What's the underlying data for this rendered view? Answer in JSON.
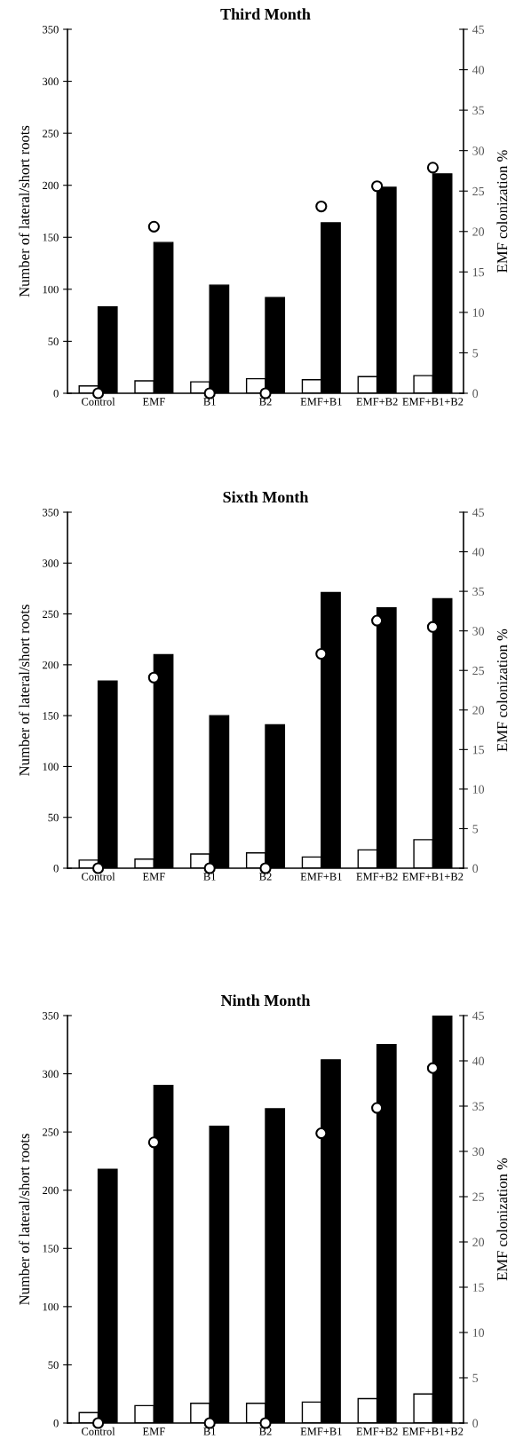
{
  "chart_data": [
    {
      "type": "bar",
      "title": "Third Month",
      "ylabel": "Number of lateral/short roots",
      "y2label": "EMF colonization %",
      "categories": [
        "Control",
        "EMF",
        "B1",
        "B2",
        "EMF+B1",
        "EMF+B2",
        "EMF+B1+B2"
      ],
      "series": [
        {
          "color": "#ffffff",
          "values": [
            7,
            12,
            11,
            14,
            13,
            16,
            17
          ]
        },
        {
          "color": "#000000",
          "values": [
            83,
            145,
            104,
            92,
            164,
            198,
            211
          ]
        },
        {
          "type": "scatter",
          "axis": "y2",
          "color": "#ffffff",
          "values": [
            0,
            20.6,
            0,
            0,
            23.1,
            25.6,
            27.9
          ]
        }
      ],
      "ylim": [
        0,
        350
      ],
      "yticks": [
        0,
        50,
        100,
        150,
        200,
        250,
        300,
        350
      ],
      "y2lim": [
        0,
        45
      ],
      "y2ticks": [
        0,
        5,
        10,
        15,
        20,
        25,
        30,
        35,
        40,
        45
      ],
      "marker": "circle",
      "grid": false,
      "legend": false
    },
    {
      "type": "bar",
      "title": "Sixth Month",
      "ylabel": "Number of lateral/short roots",
      "y2label": "EMF colonization %",
      "categories": [
        "Control",
        "EMF",
        "B1",
        "B2",
        "EMF+B1",
        "EMF+B2",
        "EMF+B1+B2"
      ],
      "series": [
        {
          "color": "#ffffff",
          "values": [
            8,
            9,
            14,
            15,
            11,
            18,
            28
          ]
        },
        {
          "color": "#000000",
          "values": [
            184,
            210,
            150,
            141,
            271,
            256,
            265
          ]
        },
        {
          "type": "scatter",
          "axis": "y2",
          "color": "#ffffff",
          "values": [
            0,
            24.1,
            0,
            0,
            27.1,
            31.3,
            30.5
          ]
        }
      ],
      "ylim": [
        0,
        350
      ],
      "yticks": [
        0,
        50,
        100,
        150,
        200,
        250,
        300,
        350
      ],
      "y2lim": [
        0,
        45
      ],
      "y2ticks": [
        0,
        5,
        10,
        15,
        20,
        25,
        30,
        35,
        40,
        45
      ],
      "marker": "circle",
      "grid": false,
      "legend": false
    },
    {
      "type": "bar",
      "title": "Ninth Month",
      "ylabel": "Number of lateral/short roots",
      "y2label": "EMF colonization %",
      "categories": [
        "Control",
        "EMF",
        "B1",
        "B2",
        "EMF+B1",
        "EMF+B2",
        "EMF+B1+B2"
      ],
      "series": [
        {
          "color": "#ffffff",
          "values": [
            9,
            15,
            17,
            17,
            18,
            21,
            25
          ]
        },
        {
          "color": "#000000",
          "values": [
            218,
            290,
            255,
            270,
            312,
            325,
            350
          ]
        },
        {
          "type": "scatter",
          "axis": "y2",
          "color": "#ffffff",
          "values": [
            0,
            31,
            0,
            0,
            32,
            34.8,
            39.2
          ]
        }
      ],
      "ylim": [
        0,
        350
      ],
      "yticks": [
        0,
        50,
        100,
        150,
        200,
        250,
        300,
        350
      ],
      "y2lim": [
        0,
        45
      ],
      "y2ticks": [
        0,
        5,
        10,
        15,
        20,
        25,
        30,
        35,
        40,
        45
      ],
      "marker": "circle",
      "grid": false,
      "legend": false
    }
  ]
}
